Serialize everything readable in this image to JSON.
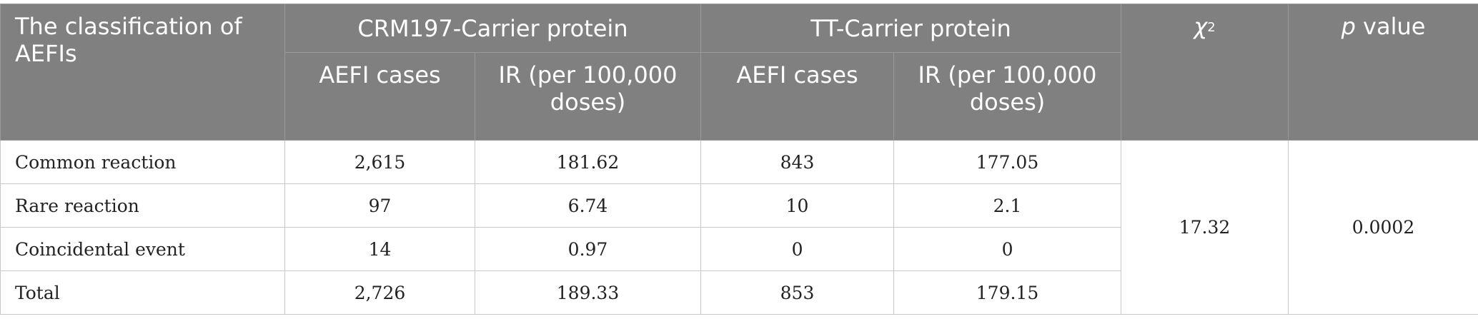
{
  "table": {
    "header": {
      "classification": "The classification of AEFIs",
      "group_crm": "CRM197-Carrier protein",
      "group_tt": "TT-Carrier protein",
      "chi_symbol": "χ",
      "chi_sup": "2",
      "p_italic": "p",
      "p_rest": " value",
      "sub_cases_crm": "AEFI cases",
      "sub_ir_crm": "IR (per 100,000 doses)",
      "sub_cases_tt": "AEFI cases",
      "sub_ir_tt": "IR (per 100,000 doses)"
    },
    "rows": [
      {
        "label": "Common reaction",
        "crm_cases": "2,615",
        "crm_ir": "181.62",
        "tt_cases": "843",
        "tt_ir": "177.05"
      },
      {
        "label": "Rare reaction",
        "crm_cases": "97",
        "crm_ir": "6.74",
        "tt_cases": "10",
        "tt_ir": "2.1"
      },
      {
        "label": "Coincidental event",
        "crm_cases": "14",
        "crm_ir": "0.97",
        "tt_cases": "0",
        "tt_ir": "0"
      },
      {
        "label": "Total",
        "crm_cases": "2,726",
        "crm_ir": "189.33",
        "tt_cases": "853",
        "tt_ir": "179.15"
      }
    ],
    "chi_square": "17.32",
    "p_value": "0.0002"
  }
}
